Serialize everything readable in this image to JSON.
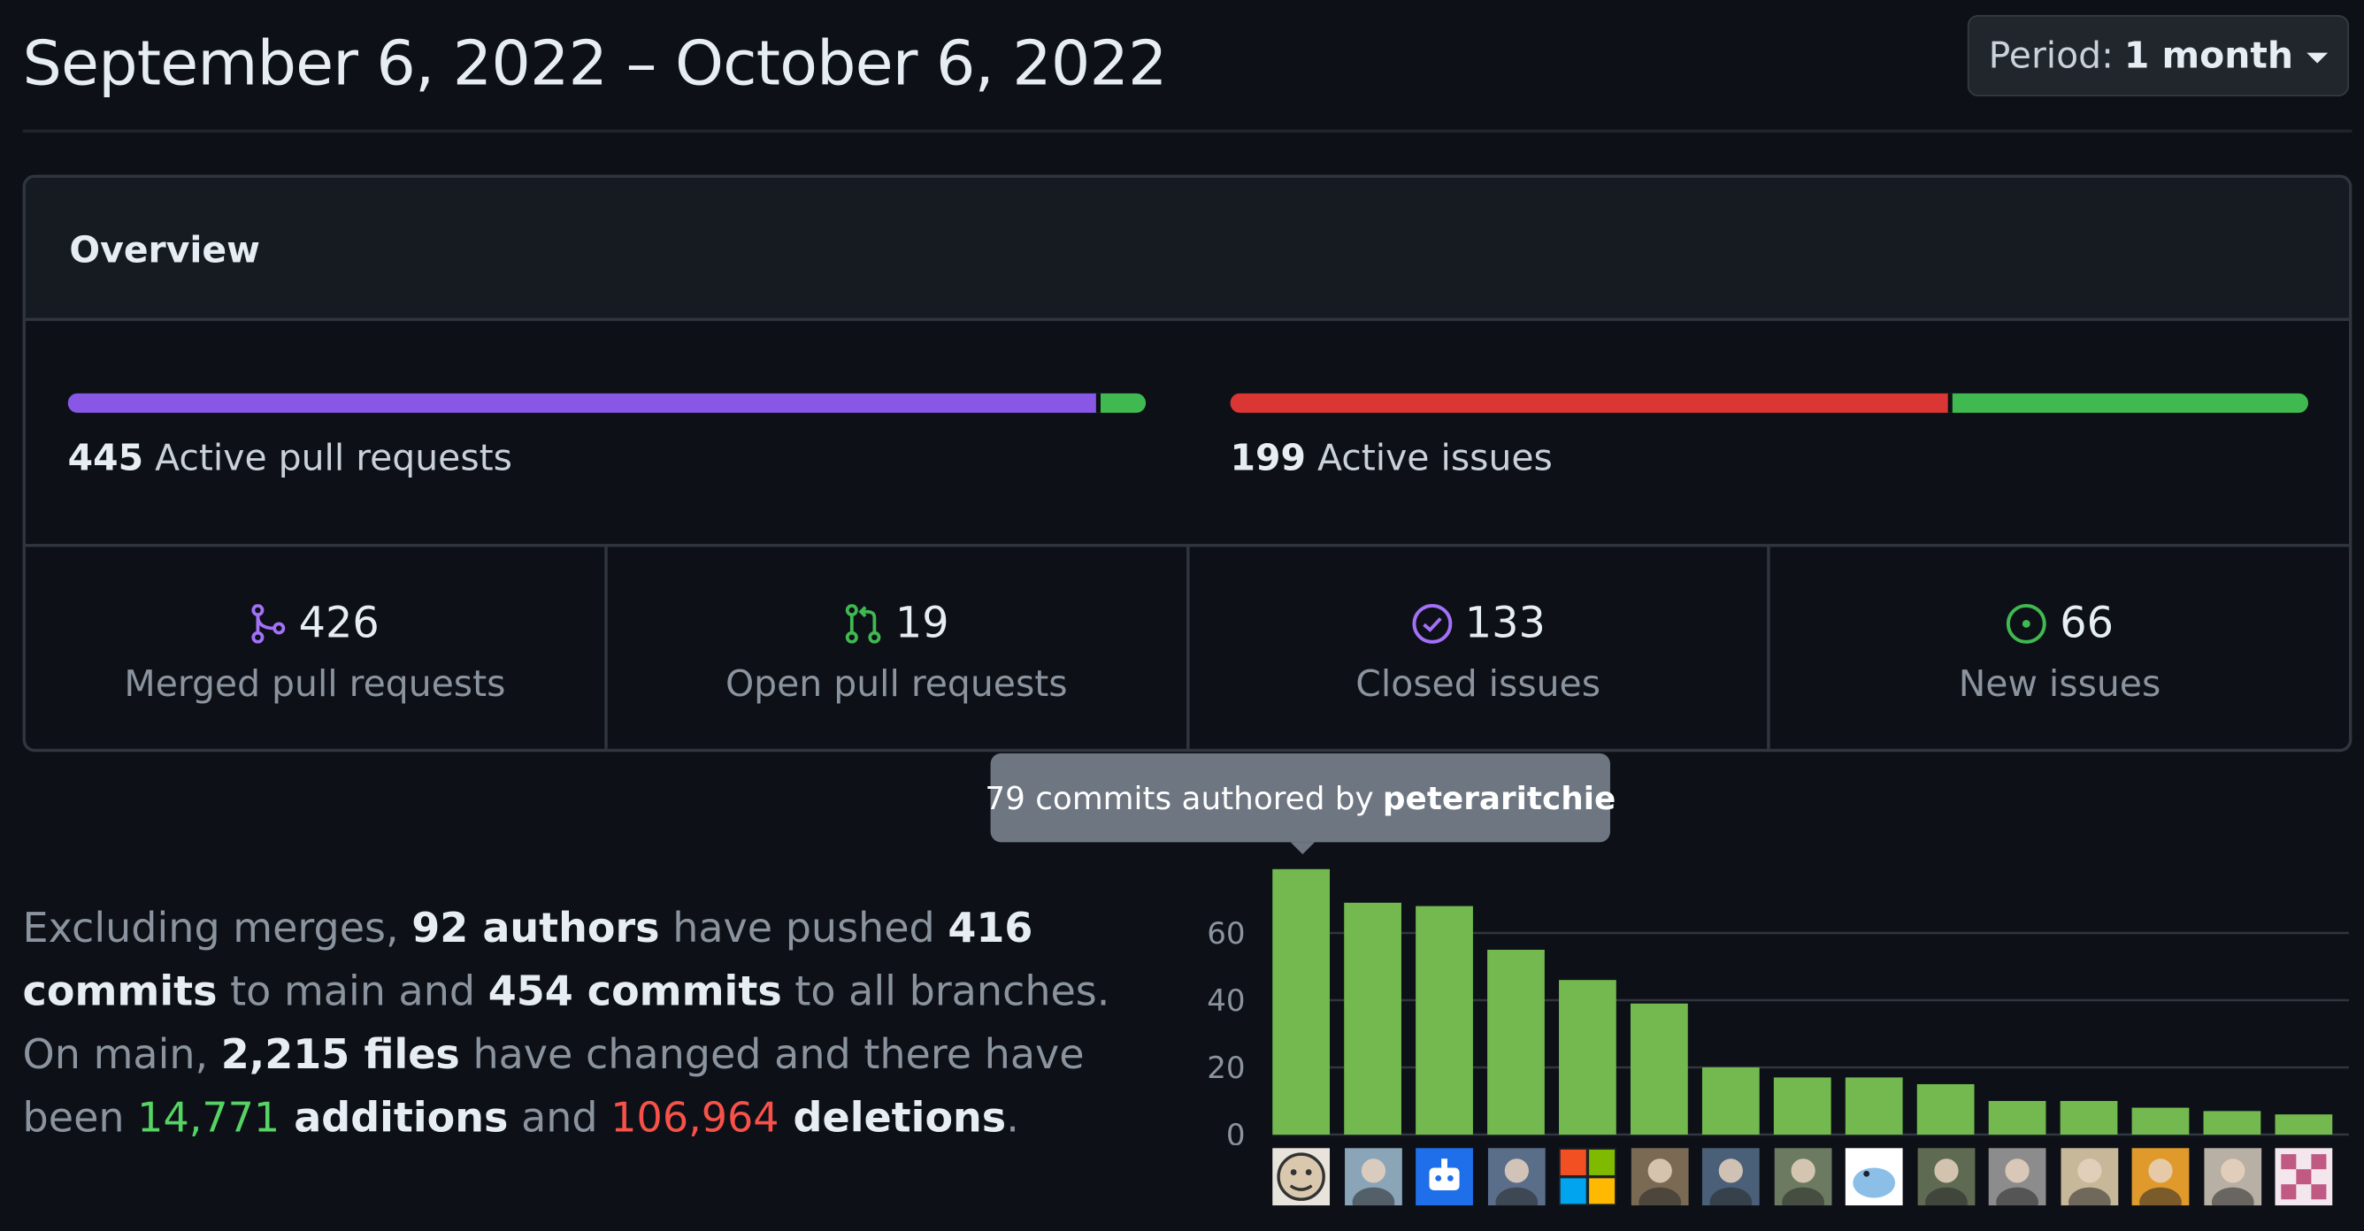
{
  "header": {
    "title": "September 6, 2022 – October 6, 2022",
    "period_prefix": "Period:",
    "period_value": "1 month"
  },
  "overview": {
    "title": "Overview",
    "pull_requests_bar": {
      "count": "445",
      "label": "Active pull requests",
      "segments": [
        {
          "name": "merged",
          "value": 426,
          "color": "#8957e5"
        },
        {
          "name": "open",
          "value": 19,
          "color": "#3fb950"
        }
      ]
    },
    "issues_bar": {
      "count": "199",
      "label": "Active issues",
      "segments": [
        {
          "name": "closed",
          "value": 133,
          "color": "#da3633"
        },
        {
          "name": "new",
          "value": 66,
          "color": "#3fb950"
        }
      ]
    },
    "stats": [
      {
        "icon": "merged-pr-icon",
        "count": "426",
        "label": "Merged pull requests",
        "color": "#a371f7"
      },
      {
        "icon": "open-pr-icon",
        "count": "19",
        "label": "Open pull requests",
        "color": "#3fb950"
      },
      {
        "icon": "closed-issue-icon",
        "count": "133",
        "label": "Closed issues",
        "color": "#a371f7"
      },
      {
        "icon": "new-issue-icon",
        "count": "66",
        "label": "New issues",
        "color": "#3fb950"
      }
    ]
  },
  "summary": {
    "t1": "Excluding merges, ",
    "authors": "92 authors",
    "t2": " have pushed ",
    "commits_main": "416 commits",
    "t3": " to main and ",
    "commits_all": "454 commits",
    "t4": " to all branches. On main, ",
    "files": "2,215 files",
    "t5": " have changed and there have been ",
    "additions_num": "14,771",
    "additions_word": " additions",
    "t6": " and ",
    "deletions_num": "106,964",
    "deletions_word": " deletions",
    "t7": "."
  },
  "tooltip": {
    "text": "79 commits authored by",
    "user": "peteraritchie"
  },
  "chart_data": {
    "type": "bar",
    "title": "",
    "xlabel": "",
    "ylabel": "",
    "ylim": [
      0,
      80
    ],
    "yticks": [
      0,
      20,
      40,
      60
    ],
    "grid": true,
    "bar_color": "#73b94f",
    "values": [
      79,
      69,
      68,
      55,
      46,
      39,
      20,
      17,
      17,
      15,
      10,
      10,
      8,
      7,
      6
    ]
  },
  "avatars": [
    {
      "icon": "avatar-cartoon-face",
      "bg": "#e8e4dc"
    },
    {
      "icon": "avatar-outdoor-photo",
      "bg": "#8aa4b8"
    },
    {
      "icon": "avatar-robot",
      "bg": "#1f6feb"
    },
    {
      "icon": "avatar-snow-photo",
      "bg": "#5a6e8a"
    },
    {
      "icon": "avatar-windows-logo",
      "bg": "#1f2328"
    },
    {
      "icon": "avatar-person-hat",
      "bg": "#7a6a54"
    },
    {
      "icon": "avatar-person-sketch",
      "bg": "#4a5f78"
    },
    {
      "icon": "avatar-person-outdoor",
      "bg": "#6b7a60"
    },
    {
      "icon": "avatar-bird",
      "bg": "#ffffff"
    },
    {
      "icon": "avatar-person-smile",
      "bg": "#5e6a52"
    },
    {
      "icon": "avatar-person-bw",
      "bg": "#8c8c8c"
    },
    {
      "icon": "avatar-person-sunglasses",
      "bg": "#c8b89a"
    },
    {
      "icon": "avatar-person-cartoon",
      "bg": "#e09a2c"
    },
    {
      "icon": "avatar-person-suit",
      "bg": "#b8b0a4"
    },
    {
      "icon": "avatar-identicon",
      "bg": "#f3e6ec"
    }
  ]
}
